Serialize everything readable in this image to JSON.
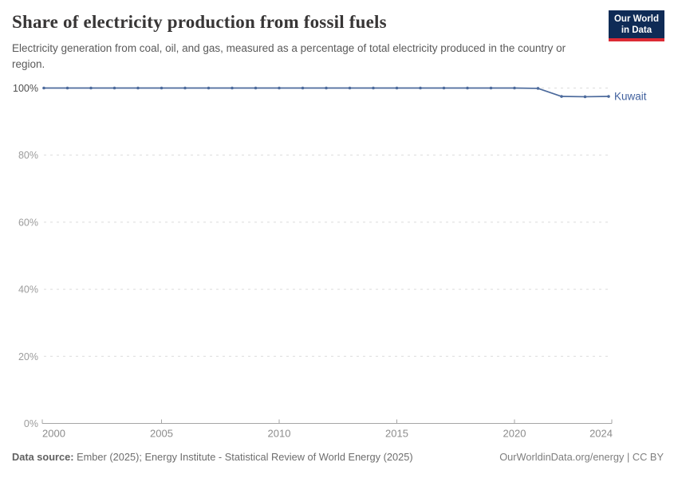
{
  "header": {
    "title": "Share of electricity production from fossil fuels",
    "subtitle": "Electricity generation from coal, oil, and gas, measured as a percentage of total electricity produced in the country or region.",
    "logo": {
      "line1": "Our World",
      "line2": "in Data"
    }
  },
  "chart_data": {
    "type": "line",
    "title": "Share of electricity production from fossil fuels",
    "xlabel": "",
    "ylabel": "",
    "xlim": [
      2000,
      2024
    ],
    "ylim": [
      0,
      100
    ],
    "x_ticks": [
      2000,
      2005,
      2010,
      2015,
      2020,
      2024
    ],
    "y_ticks": [
      0,
      20,
      40,
      60,
      80,
      100
    ],
    "y_tick_suffix": "%",
    "grid": "dashed-horizontal",
    "legend_position": "end-of-line",
    "x": [
      2000,
      2001,
      2002,
      2003,
      2004,
      2005,
      2006,
      2007,
      2008,
      2009,
      2010,
      2011,
      2012,
      2013,
      2014,
      2015,
      2016,
      2017,
      2018,
      2019,
      2020,
      2021,
      2022,
      2023,
      2024
    ],
    "series": [
      {
        "name": "Kuwait",
        "color": "#4c6a9c",
        "label_color": "#41619e",
        "values": [
          100,
          100,
          100,
          100,
          100,
          100,
          100,
          100,
          100,
          100,
          100,
          100,
          100,
          100,
          100,
          100,
          100,
          100,
          100,
          100,
          100,
          99.9,
          97.5,
          97.4,
          97.5
        ]
      }
    ]
  },
  "footer": {
    "source_label": "Data source:",
    "source_text": "Ember (2025); Energy Institute - Statistical Review of World Energy (2025)",
    "credit": "OurWorldinData.org/energy | CC BY"
  },
  "colors": {
    "axis": "#a5a5a5",
    "grid": "#dcdcdc",
    "y_tick_label": "#9c9c9c",
    "y_tick_label_max": "#4f4f4f",
    "x_tick_label": "#8c8c8c",
    "logo_bg": "#0f2b56",
    "logo_bar": "#dc2a34",
    "title": "#383636"
  }
}
